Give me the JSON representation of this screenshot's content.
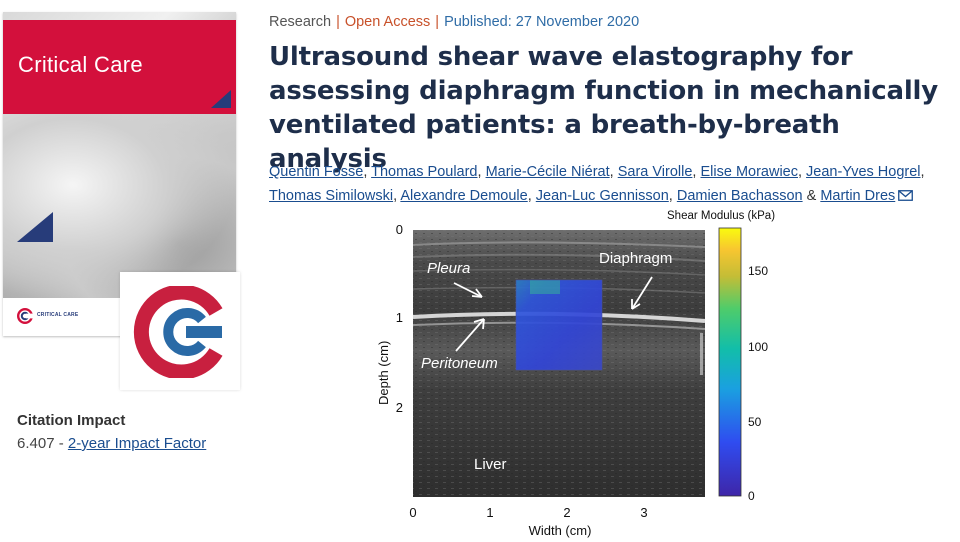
{
  "cover": {
    "journal_title": "Critical Care",
    "footer_text": "CRITICAL CARE"
  },
  "citation": {
    "heading": "Citation Impact",
    "value": "6.407",
    "separator": " - ",
    "link_label": "2-year Impact Factor"
  },
  "article": {
    "type": "Research",
    "access": "Open Access",
    "published": "Published: 27 November 2020",
    "title": "Ultrasound shear wave elastography for assessing diaphragm function in mechanically ventilated patients: a breath-by-breath analysis",
    "authors": [
      "Quentin Fossé",
      "Thomas Poulard",
      "Marie-Cécile Niérat",
      "Sara Virolle",
      "Elise Morawiec",
      "Jean-Yves Hogrel",
      "Thomas Similowski",
      "Alexandre Demoule",
      "Jean-Luc Gennisson",
      "Damien Bachasson",
      "Martin Dres"
    ],
    "author_separator": ", ",
    "last_joiner": " & "
  },
  "figure": {
    "colorbar_title": "Shear Modulus (kPa)",
    "colorbar_ticks": [
      "150",
      "100",
      "50",
      "0"
    ],
    "y_axis_label": "Depth (cm)",
    "y_ticks": [
      "0",
      "1",
      "2"
    ],
    "x_axis_label": "Width (cm)",
    "x_ticks": [
      "0",
      "1",
      "2",
      "3"
    ],
    "labels": {
      "pleura": "Pleura",
      "diaphragm": "Diaphragm",
      "peritoneum": "Peritoneum",
      "liver": "Liver"
    }
  },
  "colors": {
    "brand_red": "#d3103c",
    "brand_blue": "#273c7a",
    "link_blue": "#1a4d8f",
    "open_access": "#c8512a",
    "title_navy": "#1e2e4a"
  }
}
